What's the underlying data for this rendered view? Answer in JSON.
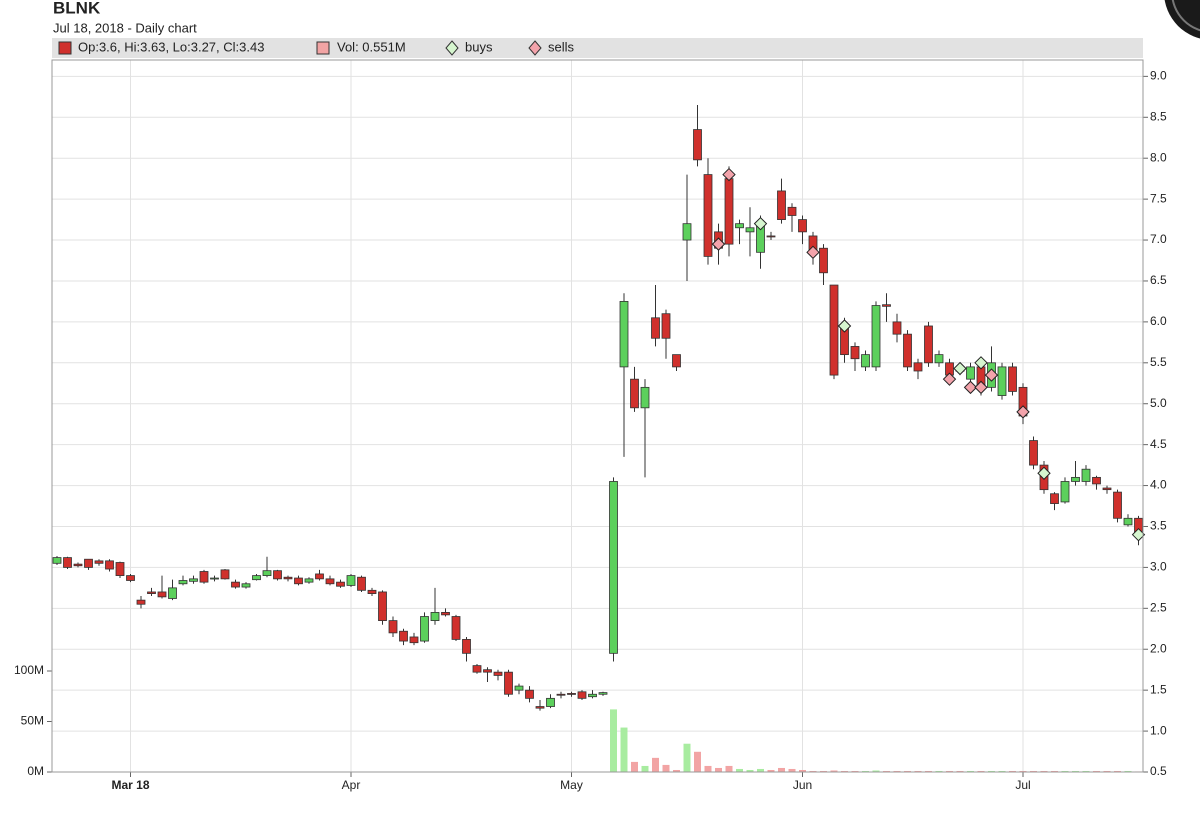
{
  "chart_data": {
    "type": "candlestick",
    "title": "BLNK",
    "subtitle": "Jul 18, 2018 - Daily chart",
    "categories": [
      null,
      null,
      null,
      null,
      null,
      null,
      null,
      "Mar 18",
      null,
      null,
      null,
      null,
      null,
      null,
      null,
      null,
      null,
      null,
      null,
      null,
      null,
      null,
      null,
      null,
      null,
      null,
      null,
      null,
      "Apr",
      null,
      null,
      null,
      null,
      null,
      null,
      null,
      null,
      null,
      null,
      null,
      null,
      null,
      null,
      null,
      null,
      null,
      null,
      null,
      null,
      "May",
      null,
      null,
      null,
      null,
      null,
      null,
      null,
      null,
      null,
      null,
      null,
      null,
      null,
      null,
      null,
      null,
      null,
      null,
      null,
      null,
      null,
      "Jun",
      null,
      null,
      null,
      null,
      null,
      null,
      null,
      null,
      null,
      null,
      null,
      null,
      null,
      null,
      null,
      null,
      null,
      null,
      null,
      null,
      "Jul",
      null,
      null,
      null,
      null,
      null,
      null,
      null,
      null,
      null,
      null,
      null
    ],
    "ylim": [
      0.5,
      9.2
    ],
    "yticks": [
      0.5,
      {
        "value": 1,
        "label": "1.0"
      },
      1.5,
      {
        "value": 2,
        "label": "2.0"
      },
      2.5,
      {
        "value": 3,
        "label": "3.0"
      },
      3.5,
      {
        "value": 4,
        "label": "4.0"
      },
      4.5,
      {
        "value": 5,
        "label": "5.0"
      },
      5.5,
      {
        "value": 6,
        "label": "6.0"
      },
      6.5,
      {
        "value": 7,
        "label": "7.0"
      },
      7.5,
      {
        "value": 8,
        "label": "8.0"
      },
      8.5,
      {
        "value": 9,
        "label": "9.0"
      }
    ],
    "y2lim": [
      0,
      705
    ],
    "y2ticks": [
      {
        "value": 0,
        "label": "0M"
      },
      {
        "value": 50,
        "label": "50M"
      },
      {
        "value": 100,
        "label": "100M"
      }
    ],
    "grid": true,
    "series": [
      {
        "name": "Op:3.6, Hi:3.63, Lo:3.27, Cl:3.43",
        "up_color": "#5cd05c",
        "down_color": "#d0302c",
        "open": [
          3.05,
          3.12,
          3.04,
          3.1,
          3.08,
          3.08,
          3.06,
          2.9,
          2.6,
          2.7,
          2.7,
          2.62,
          2.8,
          2.83,
          2.95,
          2.86,
          2.97,
          2.82,
          2.76,
          2.85,
          2.9,
          2.96,
          2.88,
          2.87,
          2.82,
          2.92,
          2.86,
          2.82,
          2.78,
          2.88,
          2.72,
          2.7,
          2.35,
          2.22,
          2.15,
          2.1,
          2.35,
          2.45,
          2.4,
          2.12,
          1.8,
          1.75,
          1.72,
          1.72,
          1.5,
          1.5,
          1.3,
          1.3,
          1.45,
          1.46,
          1.48,
          1.42,
          1.45,
          1.95,
          5.45,
          5.3,
          4.95,
          6.05,
          6.1,
          5.6,
          7.0,
          8.35,
          7.8,
          7.1,
          7.75,
          7.15,
          7.1,
          6.85,
          7.05,
          7.6,
          7.4,
          7.25,
          7.05,
          6.9,
          6.45,
          5.95,
          5.7,
          5.45,
          5.45,
          6.21,
          6.0,
          5.85,
          5.5,
          5.95,
          5.5,
          5.5,
          5.41,
          5.3,
          5.45,
          5.2,
          5.1,
          5.45,
          5.2,
          4.55,
          4.25,
          3.9,
          3.8,
          4.05,
          4.05,
          4.1,
          3.97,
          3.92,
          3.52,
          3.6
        ],
        "high": [
          3.14,
          3.13,
          3.06,
          3.1,
          3.1,
          3.1,
          3.07,
          2.92,
          2.65,
          2.75,
          2.9,
          2.85,
          2.9,
          2.9,
          2.97,
          2.9,
          2.98,
          2.85,
          2.82,
          2.92,
          3.13,
          2.97,
          2.9,
          2.9,
          2.88,
          2.97,
          2.9,
          2.85,
          2.92,
          2.9,
          2.75,
          2.72,
          2.4,
          2.25,
          2.2,
          2.45,
          2.75,
          2.5,
          2.42,
          2.15,
          1.82,
          1.78,
          1.75,
          1.75,
          1.58,
          1.55,
          1.38,
          1.45,
          1.48,
          1.48,
          1.5,
          1.5,
          1.48,
          4.1,
          6.35,
          5.45,
          5.3,
          6.45,
          6.15,
          5.6,
          7.8,
          8.65,
          8.0,
          7.2,
          7.9,
          7.25,
          7.4,
          7.3,
          7.1,
          7.75,
          7.45,
          7.3,
          7.1,
          6.95,
          6.45,
          6.05,
          5.75,
          5.65,
          6.25,
          6.35,
          6.1,
          5.9,
          5.55,
          6.0,
          5.65,
          5.55,
          5.45,
          5.5,
          5.55,
          5.7,
          5.5,
          5.5,
          5.25,
          4.6,
          4.3,
          3.92,
          4.1,
          4.3,
          4.25,
          4.12,
          4.0,
          3.95,
          3.65,
          3.63
        ],
        "low": [
          3.03,
          2.98,
          3.0,
          2.97,
          3.02,
          2.95,
          2.87,
          2.82,
          2.5,
          2.65,
          2.62,
          2.6,
          2.78,
          2.8,
          2.8,
          2.83,
          2.85,
          2.74,
          2.74,
          2.84,
          2.88,
          2.84,
          2.83,
          2.78,
          2.8,
          2.84,
          2.78,
          2.75,
          2.76,
          2.7,
          2.65,
          2.3,
          2.15,
          2.05,
          2.05,
          2.08,
          2.3,
          2.4,
          2.1,
          1.85,
          1.7,
          1.6,
          1.62,
          1.42,
          1.45,
          1.35,
          1.25,
          1.28,
          1.4,
          1.42,
          1.38,
          1.4,
          1.43,
          1.85,
          4.35,
          4.9,
          4.1,
          5.7,
          5.55,
          5.4,
          6.5,
          7.9,
          6.7,
          6.7,
          6.8,
          6.95,
          6.8,
          6.65,
          7.0,
          7.2,
          7.1,
          6.95,
          6.7,
          6.45,
          5.3,
          5.5,
          5.4,
          5.4,
          5.4,
          6.0,
          5.75,
          5.4,
          5.3,
          5.45,
          5.45,
          5.25,
          5.35,
          5.2,
          5.1,
          5.15,
          5.05,
          5.1,
          4.75,
          4.2,
          3.9,
          3.7,
          3.78,
          4.0,
          4.0,
          3.95,
          3.9,
          3.55,
          3.5,
          3.27
        ],
        "close": [
          3.12,
          3.0,
          3.02,
          3.0,
          3.05,
          2.98,
          2.9,
          2.84,
          2.55,
          2.68,
          2.64,
          2.75,
          2.84,
          2.86,
          2.82,
          2.87,
          2.86,
          2.76,
          2.8,
          2.9,
          2.96,
          2.86,
          2.86,
          2.8,
          2.86,
          2.86,
          2.8,
          2.77,
          2.9,
          2.72,
          2.68,
          2.35,
          2.2,
          2.1,
          2.08,
          2.4,
          2.45,
          2.42,
          2.12,
          1.95,
          1.72,
          1.72,
          1.68,
          1.45,
          1.55,
          1.4,
          1.28,
          1.4,
          1.44,
          1.45,
          1.4,
          1.45,
          1.47,
          4.05,
          6.25,
          4.95,
          5.2,
          5.8,
          5.8,
          5.45,
          7.2,
          7.98,
          6.8,
          6.9,
          6.95,
          7.2,
          7.15,
          7.2,
          7.04,
          7.25,
          7.3,
          7.1,
          6.85,
          6.6,
          5.35,
          5.6,
          5.55,
          5.6,
          6.2,
          6.19,
          5.85,
          5.45,
          5.4,
          5.5,
          5.6,
          5.35,
          5.4,
          5.45,
          5.2,
          5.5,
          5.45,
          5.15,
          4.85,
          4.25,
          3.95,
          3.78,
          4.05,
          4.1,
          4.2,
          4.02,
          3.95,
          3.6,
          3.6,
          3.43
        ]
      }
    ],
    "volume": {
      "name": "Vol: 0.551M",
      "axis": "y2",
      "up_color": "#a8eca0",
      "down_color": "#f2a4a4",
      "values": [
        0.3,
        0.3,
        0.3,
        0.3,
        0.3,
        0.3,
        0.3,
        0.3,
        0.3,
        0.3,
        0.3,
        0.3,
        0.3,
        0.3,
        0.3,
        0.3,
        0.3,
        0.3,
        0.3,
        0.3,
        0.3,
        0.3,
        0.3,
        0.3,
        0.3,
        0.3,
        0.3,
        0.3,
        0.3,
        0.3,
        0.3,
        0.3,
        0.3,
        0.3,
        0.3,
        0.3,
        0.3,
        0.3,
        0.3,
        0.3,
        0.3,
        0.3,
        0.3,
        0.3,
        0.3,
        0.3,
        0.3,
        0.3,
        0.3,
        0.3,
        0.5,
        0.5,
        0.5,
        62,
        44,
        10,
        6,
        14,
        7,
        2,
        28,
        20,
        6,
        4,
        6,
        3,
        2,
        3,
        2,
        4,
        3,
        2,
        1,
        1,
        1.5,
        1,
        1,
        1,
        1.5,
        1,
        1,
        1,
        1,
        1,
        1,
        1,
        1,
        1,
        1,
        1,
        1,
        1,
        1,
        1,
        1,
        1,
        1,
        1,
        1,
        1,
        1,
        1,
        1,
        0.551
      ]
    },
    "buys": {
      "name": "buys",
      "color": "#d6f6cf",
      "values": [
        null,
        null,
        null,
        null,
        null,
        null,
        null,
        null,
        null,
        null,
        null,
        null,
        null,
        null,
        null,
        null,
        null,
        null,
        null,
        null,
        null,
        null,
        null,
        null,
        null,
        null,
        null,
        null,
        null,
        null,
        null,
        null,
        null,
        null,
        null,
        null,
        null,
        null,
        null,
        null,
        null,
        null,
        null,
        null,
        null,
        null,
        null,
        null,
        null,
        null,
        null,
        null,
        null,
        null,
        null,
        null,
        null,
        null,
        null,
        null,
        null,
        null,
        null,
        null,
        null,
        null,
        null,
        7.2,
        null,
        null,
        null,
        null,
        null,
        null,
        null,
        5.95,
        null,
        null,
        null,
        null,
        null,
        null,
        null,
        null,
        null,
        null,
        5.43,
        null,
        5.5,
        null,
        null,
        null,
        null,
        null,
        4.15,
        null,
        null,
        null,
        null,
        null,
        null,
        null,
        null,
        3.4
      ]
    },
    "sells": {
      "name": "sells",
      "color": "#f3a3ab",
      "values": [
        null,
        null,
        null,
        null,
        null,
        null,
        null,
        null,
        null,
        null,
        null,
        null,
        null,
        null,
        null,
        null,
        null,
        null,
        null,
        null,
        null,
        null,
        null,
        null,
        null,
        null,
        null,
        null,
        null,
        null,
        null,
        null,
        null,
        null,
        null,
        null,
        null,
        null,
        null,
        null,
        null,
        null,
        null,
        null,
        null,
        null,
        null,
        null,
        null,
        null,
        null,
        null,
        null,
        null,
        null,
        null,
        null,
        null,
        null,
        null,
        null,
        null,
        null,
        6.95,
        7.8,
        null,
        null,
        null,
        null,
        null,
        null,
        null,
        6.85,
        null,
        null,
        null,
        null,
        null,
        null,
        null,
        null,
        null,
        null,
        null,
        null,
        5.3,
        null,
        5.2,
        5.2,
        5.35,
        null,
        null,
        4.9,
        null,
        null,
        null,
        null,
        null,
        null,
        null,
        null,
        null,
        null,
        null
      ]
    }
  }
}
